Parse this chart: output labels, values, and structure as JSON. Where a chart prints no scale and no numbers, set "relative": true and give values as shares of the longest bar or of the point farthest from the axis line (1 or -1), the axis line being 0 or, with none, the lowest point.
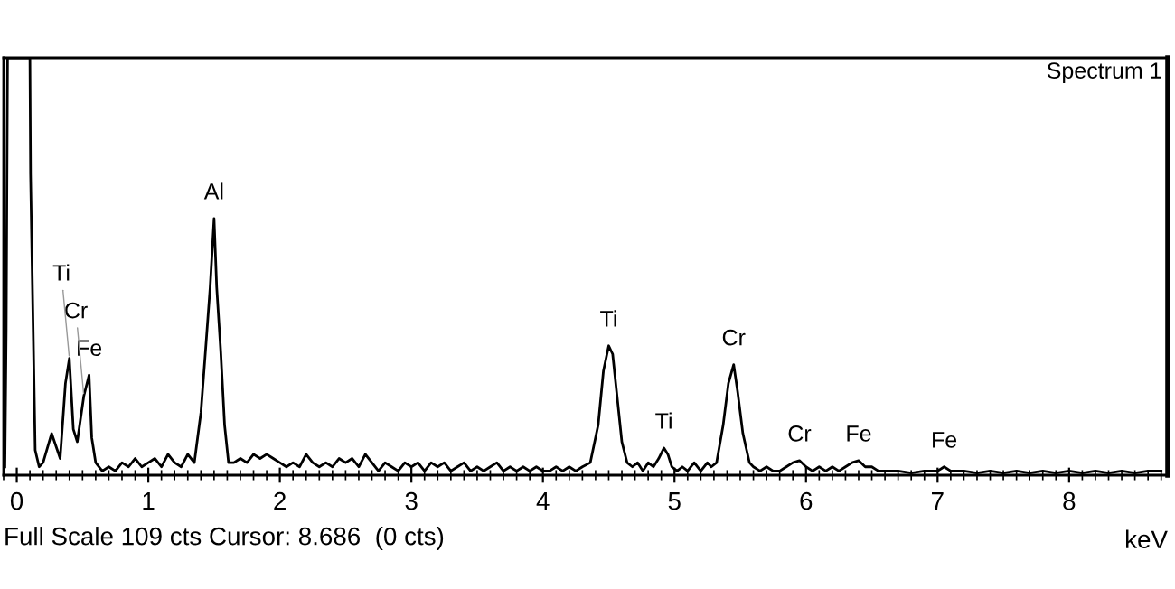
{
  "chart_data": {
    "type": "line",
    "relative": true,
    "xlabel": "keV",
    "xlim": [
      -0.1,
      8.75
    ],
    "xticks": [
      0,
      1,
      2,
      3,
      4,
      5,
      6,
      7,
      8
    ],
    "tick_labels": "x",
    "grid": false,
    "legend": false,
    "series": [
      {
        "color": "#000000",
        "x": [
          -0.09,
          -0.08,
          -0.07,
          0.1,
          0.105,
          0.14,
          0.17,
          0.2,
          0.265,
          0.33,
          0.37,
          0.4,
          0.43,
          0.46,
          0.51,
          0.55,
          0.57,
          0.6,
          0.65,
          0.7,
          0.75,
          0.8,
          0.85,
          0.9,
          0.95,
          1.0,
          1.05,
          1.1,
          1.15,
          1.2,
          1.25,
          1.3,
          1.35,
          1.4,
          1.44,
          1.47,
          1.5,
          1.52,
          1.55,
          1.58,
          1.61,
          1.65,
          1.7,
          1.75,
          1.8,
          1.85,
          1.9,
          1.95,
          2.0,
          2.05,
          2.1,
          2.15,
          2.2,
          2.25,
          2.3,
          2.35,
          2.4,
          2.45,
          2.5,
          2.55,
          2.6,
          2.65,
          2.7,
          2.75,
          2.8,
          2.85,
          2.9,
          2.95,
          3.0,
          3.05,
          3.1,
          3.15,
          3.2,
          3.25,
          3.3,
          3.35,
          3.4,
          3.45,
          3.5,
          3.55,
          3.6,
          3.65,
          3.7,
          3.75,
          3.8,
          3.85,
          3.9,
          3.95,
          4.0,
          4.05,
          4.1,
          4.15,
          4.2,
          4.25,
          4.3,
          4.36,
          4.42,
          4.46,
          4.5,
          4.53,
          4.56,
          4.6,
          4.64,
          4.68,
          4.72,
          4.76,
          4.8,
          4.84,
          4.88,
          4.92,
          4.95,
          4.98,
          5.02,
          5.06,
          5.1,
          5.15,
          5.2,
          5.25,
          5.28,
          5.32,
          5.37,
          5.41,
          5.45,
          5.48,
          5.52,
          5.57,
          5.6,
          5.65,
          5.7,
          5.75,
          5.8,
          5.85,
          5.9,
          5.95,
          6.0,
          6.05,
          6.1,
          6.15,
          6.2,
          6.25,
          6.3,
          6.35,
          6.4,
          6.45,
          6.5,
          6.55,
          6.6,
          6.7,
          6.8,
          6.9,
          7.0,
          7.05,
          7.1,
          7.2,
          7.3,
          7.4,
          7.5,
          7.6,
          7.7,
          7.8,
          7.9,
          8.0,
          8.1,
          8.2,
          8.3,
          8.4,
          8.5,
          8.6,
          8.7
        ],
        "values": [
          0.02,
          0.35,
          1.0,
          1.0,
          0.72,
          0.06,
          0.02,
          0.03,
          0.1,
          0.04,
          0.22,
          0.28,
          0.11,
          0.08,
          0.19,
          0.24,
          0.09,
          0.03,
          0.01,
          0.02,
          0.01,
          0.03,
          0.02,
          0.04,
          0.02,
          0.03,
          0.04,
          0.02,
          0.05,
          0.03,
          0.02,
          0.05,
          0.03,
          0.15,
          0.32,
          0.45,
          0.615,
          0.45,
          0.3,
          0.12,
          0.03,
          0.03,
          0.04,
          0.03,
          0.05,
          0.04,
          0.05,
          0.04,
          0.03,
          0.02,
          0.03,
          0.02,
          0.05,
          0.03,
          0.02,
          0.03,
          0.02,
          0.04,
          0.03,
          0.04,
          0.02,
          0.05,
          0.03,
          0.01,
          0.03,
          0.02,
          0.01,
          0.03,
          0.02,
          0.03,
          0.01,
          0.03,
          0.02,
          0.03,
          0.01,
          0.02,
          0.03,
          0.01,
          0.02,
          0.01,
          0.02,
          0.03,
          0.01,
          0.02,
          0.01,
          0.02,
          0.01,
          0.02,
          0.01,
          0.01,
          0.02,
          0.01,
          0.02,
          0.01,
          0.02,
          0.03,
          0.12,
          0.25,
          0.31,
          0.29,
          0.2,
          0.08,
          0.03,
          0.02,
          0.03,
          0.01,
          0.03,
          0.02,
          0.04,
          0.065,
          0.05,
          0.02,
          0.01,
          0.02,
          0.01,
          0.03,
          0.01,
          0.03,
          0.02,
          0.03,
          0.12,
          0.22,
          0.265,
          0.2,
          0.1,
          0.03,
          0.02,
          0.01,
          0.02,
          0.01,
          0.01,
          0.02,
          0.03,
          0.035,
          0.02,
          0.01,
          0.02,
          0.01,
          0.02,
          0.01,
          0.02,
          0.03,
          0.035,
          0.02,
          0.02,
          0.01,
          0.01,
          0.01,
          0.005,
          0.01,
          0.01,
          0.02,
          0.01,
          0.01,
          0.005,
          0.01,
          0.005,
          0.01,
          0.005,
          0.01,
          0.005,
          0.01,
          0.005,
          0.01,
          0.005,
          0.01,
          0.005,
          0.01,
          0.01
        ]
      }
    ],
    "annotations": [
      {
        "text": "Ti",
        "x": 0.4,
        "y": 0.28
      },
      {
        "text": "Cr",
        "x": 0.51,
        "y": 0.19
      },
      {
        "text": "Fe",
        "x": 0.55,
        "y": 0.24
      },
      {
        "text": "Al",
        "x": 1.5,
        "y": 0.615
      },
      {
        "text": "Ti",
        "x": 4.5,
        "y": 0.31
      },
      {
        "text": "Ti",
        "x": 4.92,
        "y": 0.065
      },
      {
        "text": "Cr",
        "x": 5.45,
        "y": 0.265
      },
      {
        "text": "Cr",
        "x": 5.95,
        "y": 0.035
      },
      {
        "text": "Fe",
        "x": 6.4,
        "y": 0.035
      },
      {
        "text": "Fe",
        "x": 7.05,
        "y": 0.02
      },
      "Spectrum 1",
      "Full Scale 109 cts Cursor: 8.686  (0 cts)"
    ]
  }
}
